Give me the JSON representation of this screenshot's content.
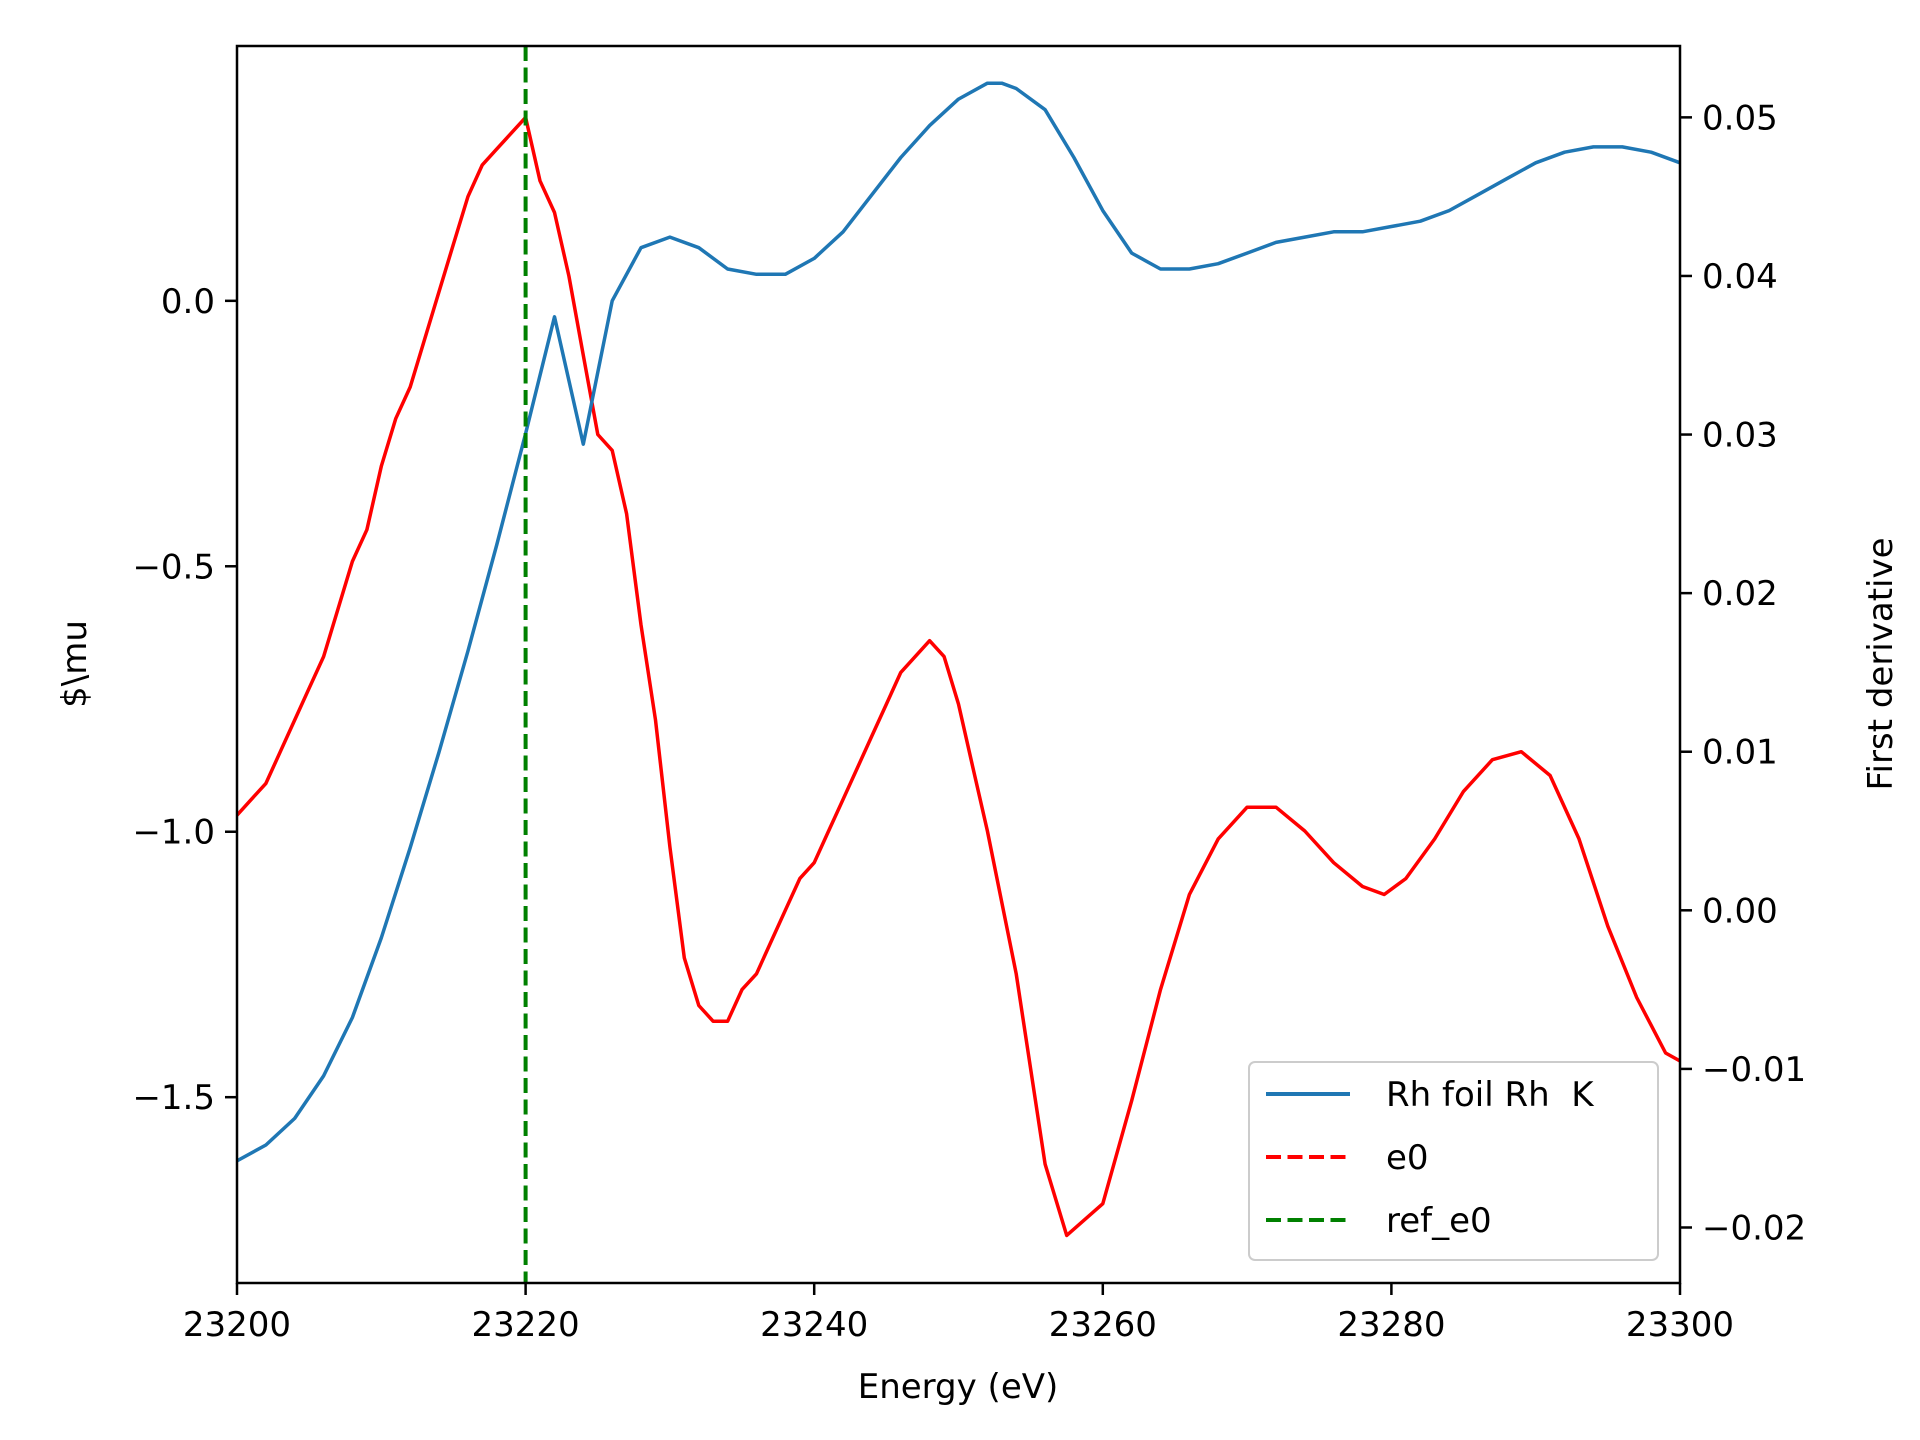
{
  "chart_data": {
    "type": "line",
    "title": "",
    "xlabel": "Energy (eV)",
    "ylabel_left": "$\\mu",
    "ylabel_right": "First derivative",
    "xlim": [
      23200,
      23300
    ],
    "ylim_left": [
      -1.85,
      0.48
    ],
    "ylim_right": [
      -0.0235,
      0.0545
    ],
    "x_ticks": [
      "23200",
      "23220",
      "23240",
      "23260",
      "23280",
      "23300"
    ],
    "y_ticks_left": [
      "0.0",
      "−0.5",
      "−1.0",
      "−1.5"
    ],
    "y_ticks_right": [
      "0.05",
      "0.04",
      "0.03",
      "0.02",
      "0.01",
      "0.00",
      "−0.01",
      "−0.02"
    ],
    "legend_position": "lower right",
    "grid": false,
    "colors": {
      "mu": "#1f77b4",
      "e0": "#ff0000",
      "ref_e0": "#008000"
    },
    "series": [
      {
        "name": "Rh foil Rh  K",
        "axis": "left",
        "style": "solid",
        "x": [
          23200,
          23202,
          23204,
          23206,
          23208,
          23210,
          23212,
          23214,
          23216,
          23218,
          23220,
          23222,
          23224,
          23226,
          23228,
          23230,
          23232,
          23234,
          23236,
          23238,
          23240,
          23242,
          23244,
          23246,
          23248,
          23250,
          23252,
          23253,
          23254,
          23256,
          23258,
          23260,
          23262,
          23264,
          23266,
          23268,
          23270,
          23272,
          23274,
          23276,
          23278,
          23280,
          23282,
          23284,
          23286,
          23288,
          23290,
          23292,
          23294,
          23296,
          23298,
          23300
        ],
        "values": [
          -1.62,
          -1.59,
          -1.54,
          -1.46,
          -1.35,
          -1.2,
          -1.03,
          -0.85,
          -0.66,
          -0.46,
          -0.25,
          -0.03,
          -0.27,
          0.0,
          0.1,
          0.12,
          0.1,
          0.06,
          0.05,
          0.05,
          0.08,
          0.13,
          0.2,
          0.27,
          0.33,
          0.38,
          0.41,
          0.41,
          0.4,
          0.36,
          0.27,
          0.17,
          0.09,
          0.06,
          0.06,
          0.07,
          0.09,
          0.11,
          0.12,
          0.13,
          0.13,
          0.14,
          0.15,
          0.17,
          0.2,
          0.23,
          0.26,
          0.28,
          0.29,
          0.29,
          0.28,
          0.26
        ]
      },
      {
        "name": "",
        "axis": "right",
        "style": "solid",
        "x": [
          23200,
          23201,
          23202,
          23203,
          23204,
          23205,
          23206,
          23207,
          23208,
          23209,
          23210,
          23211,
          23212,
          23213,
          23214,
          23215,
          23216,
          23217,
          23218,
          23219,
          23220,
          23221,
          23222,
          23223,
          23224,
          23225,
          23226,
          23227,
          23228,
          23229,
          23230,
          23231,
          23232,
          23233,
          23234,
          23235,
          23236,
          23237,
          23238,
          23239,
          23240,
          23241,
          23242,
          23243,
          23244,
          23245,
          23246,
          23247,
          23248,
          23249,
          23250,
          23251,
          23252,
          23254,
          23256,
          23257.5,
          23260,
          23262,
          23264,
          23266,
          23268,
          23270,
          23272,
          23274,
          23276,
          23278,
          23279.5,
          23281,
          23283,
          23285,
          23287,
          23289,
          23291,
          23293,
          23295,
          23297,
          23299,
          23300
        ],
        "values": [
          0.006,
          0.007,
          0.008,
          0.01,
          0.012,
          0.014,
          0.016,
          0.019,
          0.022,
          0.024,
          0.028,
          0.031,
          0.033,
          0.036,
          0.039,
          0.042,
          0.045,
          0.047,
          0.048,
          0.049,
          0.05,
          0.046,
          0.044,
          0.04,
          0.035,
          0.03,
          0.029,
          0.025,
          0.018,
          0.012,
          0.004,
          -0.003,
          -0.006,
          -0.007,
          -0.007,
          -0.005,
          -0.004,
          -0.002,
          0.0,
          0.002,
          0.003,
          0.005,
          0.007,
          0.009,
          0.011,
          0.013,
          0.015,
          0.016,
          0.017,
          0.016,
          0.013,
          0.009,
          0.005,
          -0.004,
          -0.016,
          -0.0205,
          -0.0185,
          -0.012,
          -0.005,
          0.001,
          0.0045,
          0.0065,
          0.0065,
          0.005,
          0.003,
          0.0015,
          0.001,
          0.002,
          0.0045,
          0.0075,
          0.0095,
          0.01,
          0.0085,
          0.0045,
          -0.001,
          -0.0055,
          -0.009,
          -0.0095
        ]
      },
      {
        "name": "e0",
        "axis": "left",
        "style": "dashed",
        "x": [],
        "values": []
      },
      {
        "name": "ref_e0",
        "axis": "left",
        "style": "dashed",
        "vline_x": 23220
      }
    ],
    "legend": [
      "Rh foil Rh  K",
      "e0",
      "ref_e0"
    ]
  }
}
